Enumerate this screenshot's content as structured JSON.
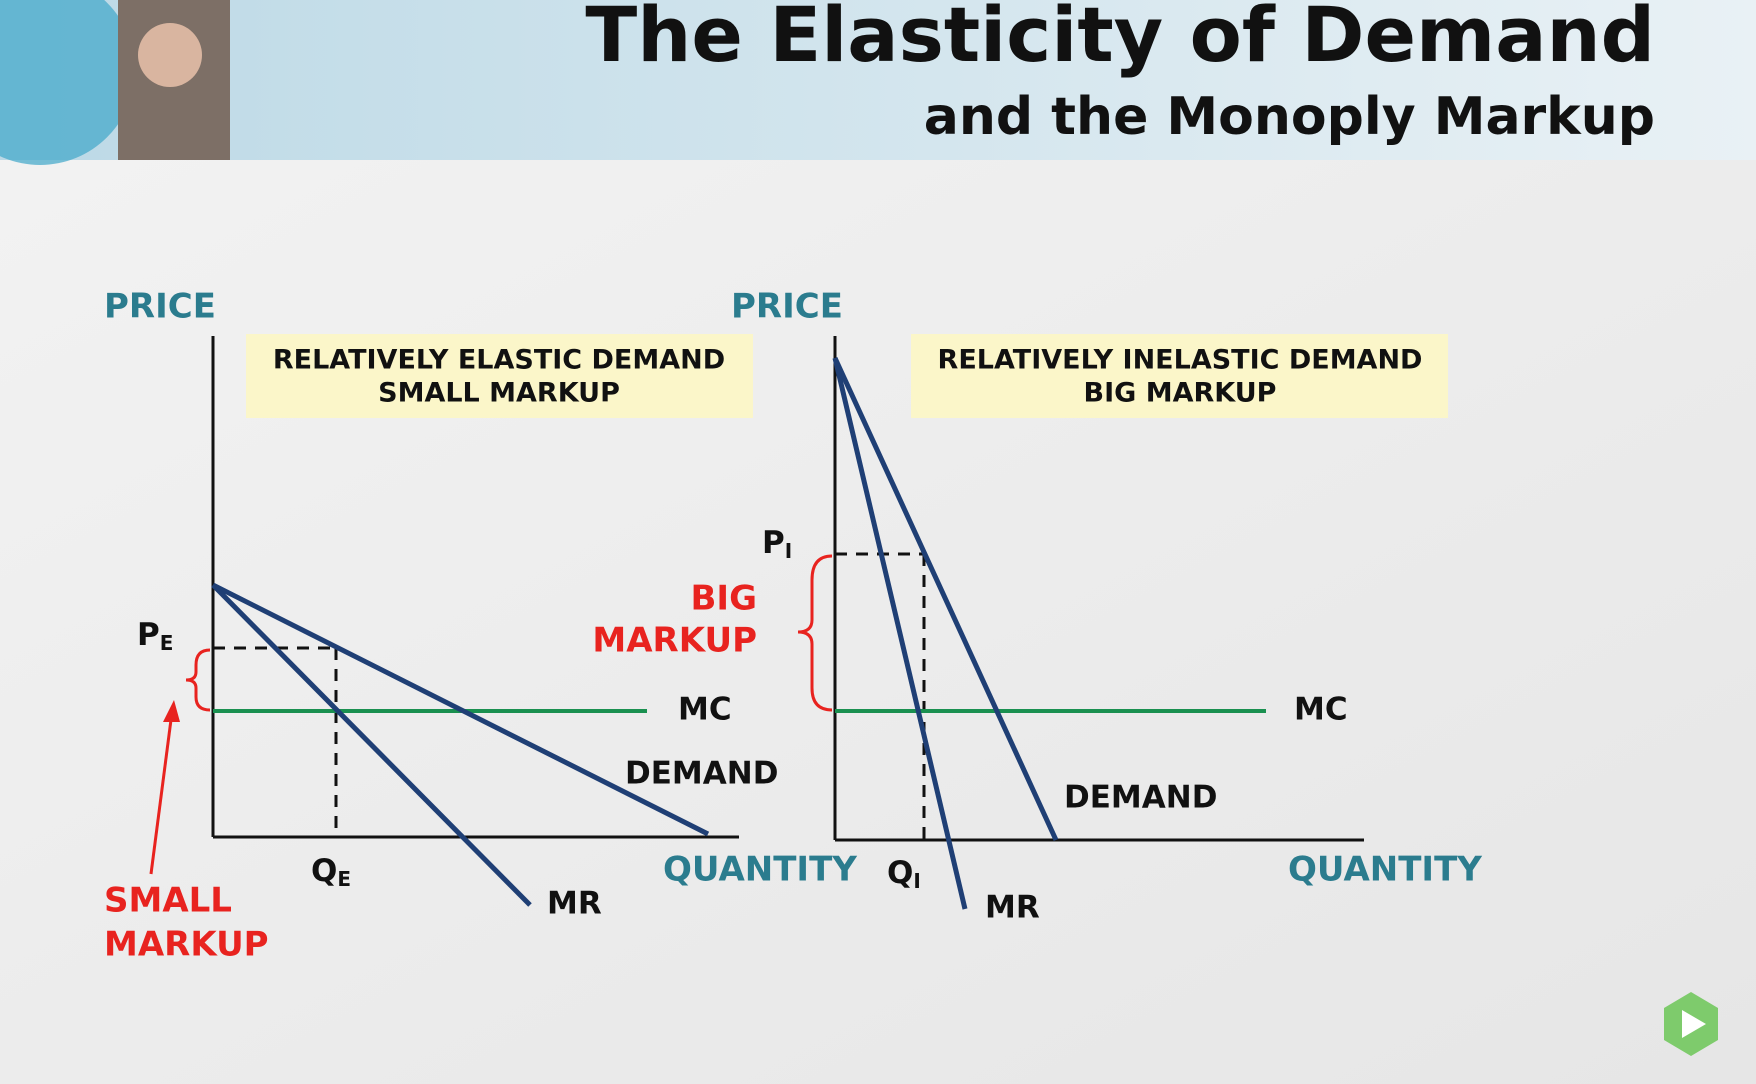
{
  "header": {
    "title": "The Elasticity of Demand",
    "subtitle": "and the Monoply Markup"
  },
  "panels": [
    {
      "y_label": "PRICE",
      "x_label": "QUANTITY",
      "box_lines": [
        "RELATIVELY ELASTIC DEMAND",
        "SMALL MARKUP"
      ],
      "price_label": {
        "main": "P",
        "sub": "E"
      },
      "quantity_label": {
        "main": "Q",
        "sub": "E"
      },
      "mc": "MC",
      "demand": "DEMAND",
      "mr": "MR",
      "markup_lines": [
        "SMALL",
        "MARKUP"
      ]
    },
    {
      "y_label": "PRICE",
      "x_label": "QUANTITY",
      "box_lines": [
        "RELATIVELY INELASTIC DEMAND",
        "BIG MARKUP"
      ],
      "price_label": {
        "main": "P",
        "sub": "I"
      },
      "quantity_label": {
        "main": "Q",
        "sub": "I"
      },
      "mc": "MC",
      "demand": "DEMAND",
      "mr": "MR",
      "markup_lines": [
        "BIG",
        "MARKUP"
      ]
    }
  ]
}
